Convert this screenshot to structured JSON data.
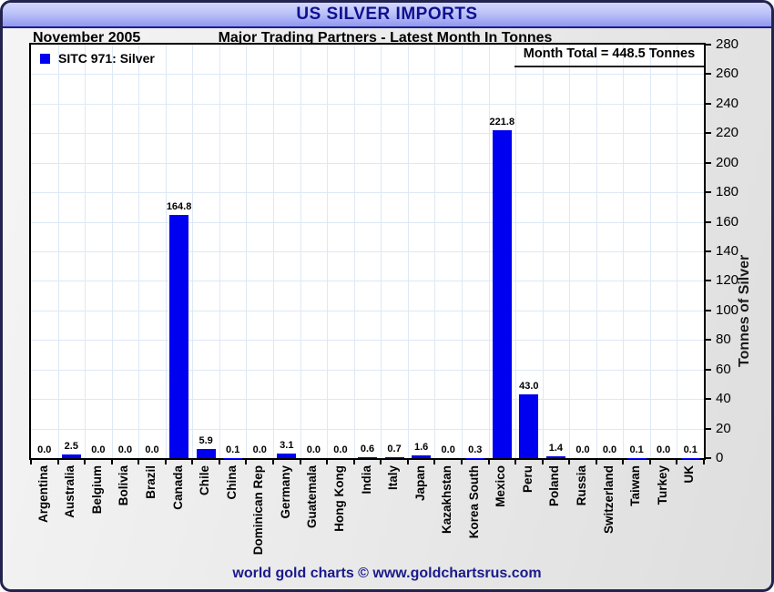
{
  "header": {
    "title": "US SILVER IMPORTS"
  },
  "subtitle": {
    "date_label": "November 2005",
    "text": "Major Trading Partners - Latest Month In Tonnes"
  },
  "legend": {
    "label": "SITC 971: Silver"
  },
  "annotation": {
    "month_total": "Month Total = 448.5 Tonnes"
  },
  "footer": {
    "credit": "world gold charts © www.goldchartsrus.com"
  },
  "colors": {
    "bar": "#0000f0",
    "grid": "#dde9f5",
    "navy_text": "#10108f",
    "header_gradient_top": "#d3d7fc",
    "header_gradient_bottom": "#9098ee",
    "frame_border": "#23234f"
  },
  "chart_data": {
    "type": "bar",
    "title": "US SILVER IMPORTS",
    "subtitle": "Major Trading Partners - Latest Month In Tonnes",
    "period": "November 2005",
    "series_name": "SITC 971: Silver",
    "month_total_tonnes": 448.5,
    "categories": [
      "Argentina",
      "Australia",
      "Belgium",
      "Bolivia",
      "Brazil",
      "Canada",
      "Chile",
      "China",
      "Dominican Rep",
      "Germany",
      "Guatemala",
      "Hong Kong",
      "India",
      "Italy",
      "Japan",
      "Kazakhstan",
      "Korea South",
      "Mexico",
      "Peru",
      "Poland",
      "Russia",
      "Switzerland",
      "Taiwan",
      "Turkey",
      "UK"
    ],
    "values": [
      0.0,
      2.5,
      0.0,
      0.0,
      0.0,
      164.8,
      5.9,
      0.1,
      0.0,
      3.1,
      0.0,
      0.0,
      0.6,
      0.7,
      1.6,
      0.0,
      0.3,
      221.8,
      43.0,
      1.4,
      0.0,
      0.0,
      0.1,
      0.0,
      0.1
    ],
    "value_label_format": "1-decimal",
    "xlabel": "",
    "ylabel": "Tonnes of Silver",
    "ylim": [
      0,
      280
    ],
    "ytick_step": 20,
    "yaxis_side": "right",
    "grid": true,
    "legend_position": "top-left",
    "value_labels": true
  }
}
